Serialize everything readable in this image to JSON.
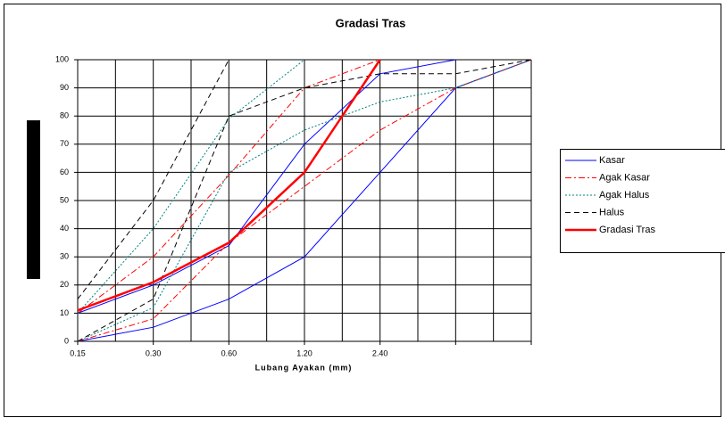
{
  "chart_data": {
    "type": "line",
    "title": "Gradasi Tras",
    "x_label": "Lubang Ayakan (mm)",
    "categories": [
      "0.15",
      "0.30",
      "0.60",
      "1.20",
      "2.40",
      null,
      null
    ],
    "ylim": [
      0,
      100
    ],
    "yticks": [
      0,
      10,
      20,
      30,
      40,
      50,
      60,
      70,
      80,
      90,
      100
    ],
    "grid": true,
    "series": [
      {
        "name": "Kasar",
        "color": "#0000ff",
        "dash": "solid",
        "width": 1,
        "lower": [
          0,
          5,
          15,
          30,
          60,
          90,
          100
        ],
        "upper": [
          10,
          20,
          34,
          70,
          95,
          100,
          null
        ]
      },
      {
        "name": "Agak Kasar",
        "color": "#ff0000",
        "dash": "dashdot",
        "width": 1,
        "lower": [
          0,
          8,
          35,
          55,
          75,
          90,
          100
        ],
        "upper": [
          10,
          30,
          59,
          90,
          100,
          null,
          null
        ]
      },
      {
        "name": "Agak Halus",
        "color": "#008080",
        "dash": "dot",
        "width": 1,
        "lower": [
          0,
          12,
          60,
          75,
          85,
          90,
          100
        ],
        "upper": [
          10,
          40,
          79,
          100,
          null,
          null,
          null
        ]
      },
      {
        "name": "Halus",
        "color": "#000000",
        "dash": "dash",
        "width": 1,
        "lower": [
          0,
          15,
          80,
          90,
          95,
          95,
          100
        ],
        "upper": [
          15,
          50,
          100,
          null,
          null,
          null,
          null
        ]
      },
      {
        "name": "Gradasi Tras",
        "color": "#ff0000",
        "dash": "solid",
        "width": 2.5,
        "values": [
          11,
          21,
          35,
          60,
          100,
          null,
          null
        ]
      }
    ]
  }
}
